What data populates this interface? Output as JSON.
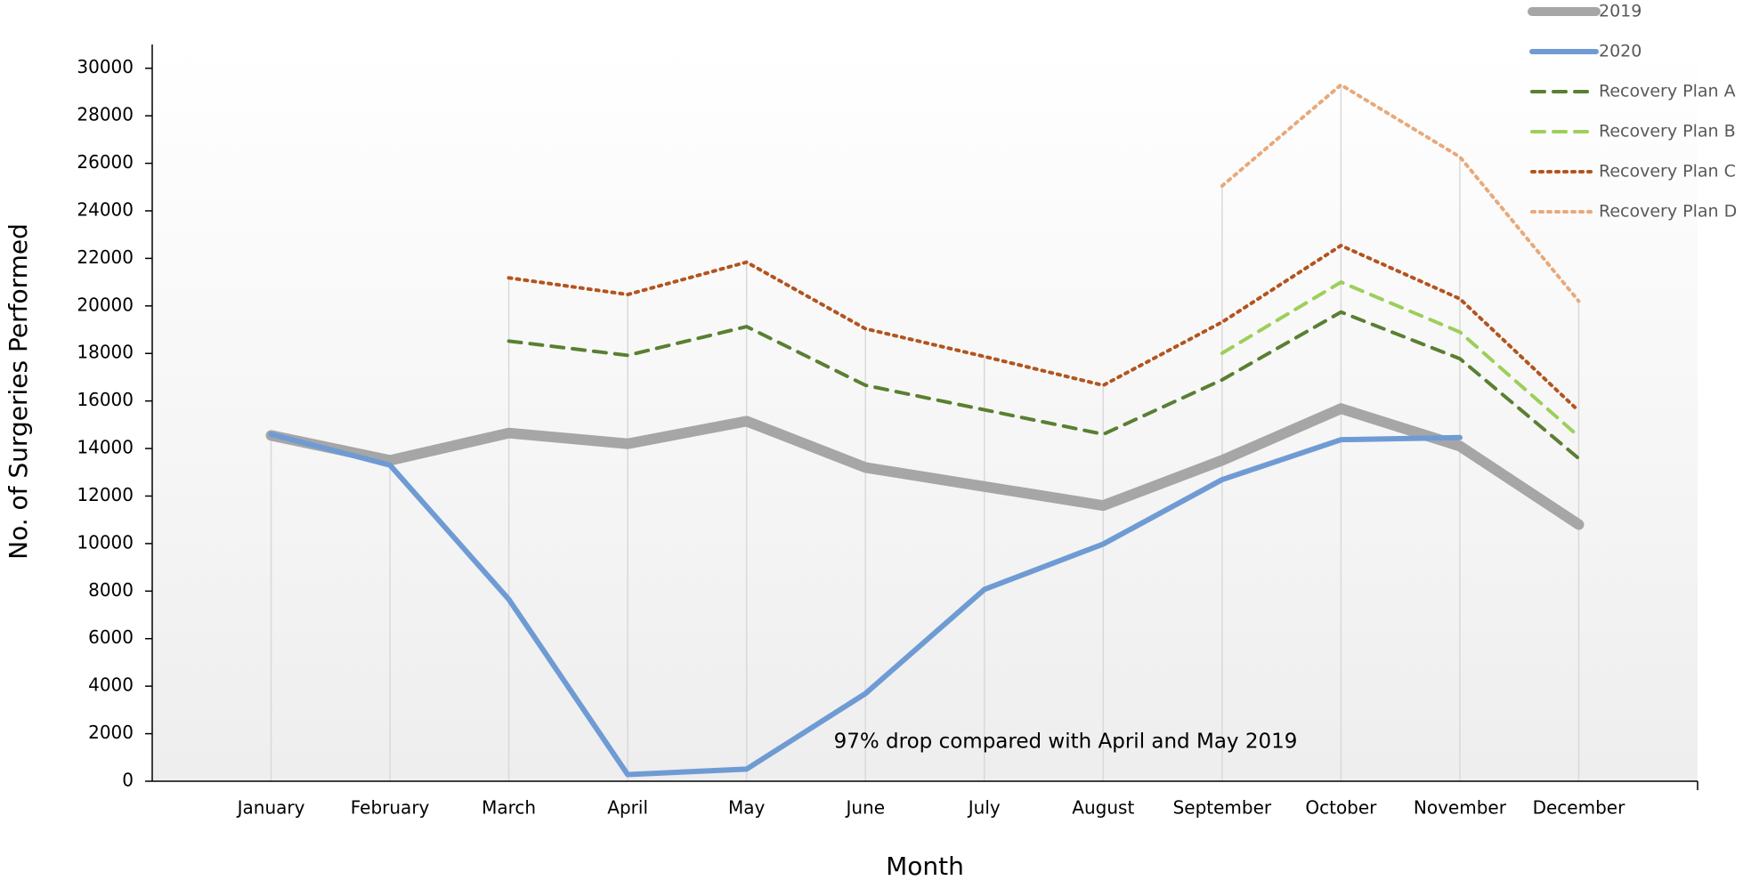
{
  "chart_data": {
    "type": "line",
    "x_label": "Month",
    "y_label": "No. of Surgeries Performed",
    "annotation": "97% drop compared with April and May 2019",
    "categories": [
      "January",
      "February",
      "March",
      "April",
      "May",
      "June",
      "July",
      "August",
      "September",
      "October",
      "November",
      "December"
    ],
    "series": [
      {
        "name": "2019",
        "color": "#a6a6a6",
        "style": "solid",
        "values": [
          14550,
          13500,
          14650,
          14200,
          15150,
          13200,
          12400,
          11600,
          13500,
          15680,
          14100,
          10800
        ]
      },
      {
        "name": "2020",
        "color": "#6f9bd4",
        "style": "solid",
        "values": [
          14600,
          13300,
          7650,
          280,
          510,
          3690,
          8070,
          9980,
          12690,
          14370,
          14460,
          null
        ]
      },
      {
        "name": "Recovery Plan A",
        "color": "#5a7f32",
        "style": "dashed",
        "values": [
          null,
          null,
          18520,
          17920,
          19130,
          16660,
          15630,
          14600,
          16890,
          19740,
          17780,
          13580
        ]
      },
      {
        "name": "Recovery Plan B",
        "color": "#9ccf5b",
        "style": "dashed",
        "values": [
          null,
          null,
          null,
          null,
          null,
          null,
          null,
          null,
          18010,
          21000,
          18900,
          14510
        ]
      },
      {
        "name": "Recovery Plan C",
        "color": "#b3541e",
        "style": "dotted",
        "values": [
          null,
          null,
          21180,
          20480,
          21840,
          19040,
          17870,
          16660,
          19320,
          22540,
          20300,
          15580
        ]
      },
      {
        "name": "Recovery Plan D",
        "color": "#e8a97a",
        "style": "dotted",
        "values": [
          null,
          null,
          null,
          null,
          null,
          null,
          null,
          null,
          25050,
          29300,
          26270,
          20200
        ]
      }
    ],
    "ylim": [
      0,
      31000
    ],
    "yticks": [
      0,
      2000,
      4000,
      6000,
      8000,
      10000,
      12000,
      14000,
      16000,
      18000,
      20000,
      22000,
      24000,
      26000,
      28000,
      30000
    ],
    "legend_position": "top-right",
    "annotation_color": "#4a78c2"
  }
}
